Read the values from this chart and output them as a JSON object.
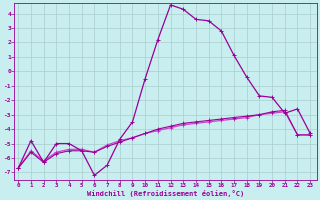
{
  "xlabel": "Windchill (Refroidissement éolien,°C)",
  "bg_color": "#c8eef0",
  "grid_color": "#aacccc",
  "line_color1": "#990099",
  "line_color2": "#cc44cc",
  "x_ticks": [
    0,
    1,
    2,
    3,
    4,
    5,
    6,
    7,
    8,
    9,
    10,
    11,
    12,
    13,
    14,
    15,
    16,
    17,
    18,
    19,
    20,
    21,
    22,
    23
  ],
  "y_ticks": [
    4,
    3,
    2,
    1,
    0,
    -1,
    -2,
    -3,
    -4,
    -5,
    -6,
    -7
  ],
  "ylim": [
    -7.5,
    4.7
  ],
  "xlim": [
    -0.3,
    23.5
  ],
  "curve1_y": [
    -6.7,
    -4.8,
    -6.3,
    -5.0,
    -5.0,
    -5.5,
    -7.2,
    -6.5,
    -4.7,
    -3.5,
    -0.5,
    2.2,
    4.6,
    4.3,
    3.6,
    3.5,
    2.8,
    1.1,
    -0.4,
    -1.7,
    -1.8,
    -2.9,
    -2.6,
    -4.3
  ],
  "curve2_y": [
    -6.7,
    -5.5,
    -6.2,
    -5.6,
    -5.4,
    -5.4,
    -5.6,
    -5.1,
    -4.8,
    -4.6,
    -4.3,
    -4.1,
    -3.9,
    -3.7,
    -3.6,
    -3.5,
    -3.4,
    -3.3,
    -3.2,
    -3.0,
    -2.9,
    -2.8,
    -4.4,
    -4.4
  ],
  "curve3_y": [
    -6.7,
    -5.6,
    -6.3,
    -5.7,
    -5.5,
    -5.5,
    -5.6,
    -5.2,
    -4.9,
    -4.6,
    -4.3,
    -4.0,
    -3.8,
    -3.6,
    -3.5,
    -3.4,
    -3.3,
    -3.2,
    -3.1,
    -3.0,
    -2.8,
    -2.7,
    -4.4,
    -4.4
  ]
}
